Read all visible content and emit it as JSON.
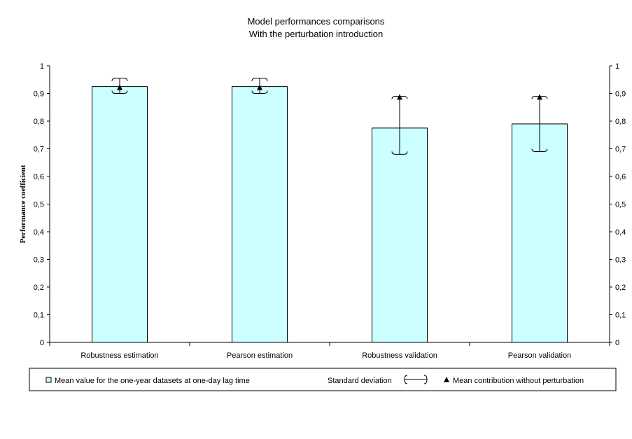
{
  "chart_data": {
    "type": "bar",
    "title": "Model performances comparisons",
    "subtitle": "With the perturbation introduction",
    "ylabel": "Performance coefficient",
    "xlabel": "",
    "ylim": [
      0,
      1
    ],
    "yticks": [
      "0",
      "0,1",
      "0,2",
      "0,3",
      "0,4",
      "0,5",
      "0,6",
      "0,7",
      "0,8",
      "0,9",
      "1"
    ],
    "secondary_axis": true,
    "categories": [
      "Robustness estimation",
      "Pearson estimation",
      "Robustness validation",
      "Pearson validation"
    ],
    "series": [
      {
        "name": "Mean value for the one-year datasets at one-day lag time",
        "type": "bar",
        "values": [
          0.925,
          0.925,
          0.775,
          0.79
        ],
        "color": "#ccffff"
      },
      {
        "name": "Standard deviation",
        "type": "errorbar",
        "lower": [
          0.9,
          0.9,
          0.68,
          0.69
        ],
        "upper": [
          0.955,
          0.955,
          0.89,
          0.89
        ]
      },
      {
        "name": "Mean contribution without perturbation",
        "type": "marker",
        "values": [
          0.92,
          0.92,
          0.885,
          0.885
        ]
      }
    ],
    "grid": false,
    "legend_position": "bottom"
  },
  "legend": {
    "bar_label": "Mean value for the one-year datasets at one-day lag time",
    "std_label": "Standard deviation",
    "marker_label": "Mean contribution without perturbation"
  },
  "colors": {
    "bar_fill": "#ccffff",
    "bar_stroke": "#000000",
    "axis": "#000000"
  }
}
